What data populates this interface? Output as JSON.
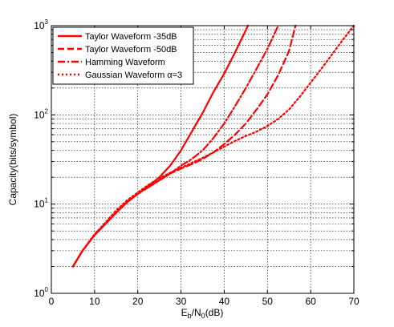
{
  "chart_data": {
    "type": "line",
    "title": "",
    "xlabel": {
      "base": "E",
      "sub1": "b",
      "mid": "/N",
      "sub2": "0",
      "tail": "(dB)"
    },
    "ylabel": "Capacity(bits/symbol)",
    "xlim": [
      0,
      70
    ],
    "ylim": [
      1,
      1000
    ],
    "yscale": "log",
    "grid": true,
    "legend_position": "top-left",
    "x_ticks": [
      {
        "value": 0,
        "label": "0"
      },
      {
        "value": 10,
        "label": "10"
      },
      {
        "value": 20,
        "label": "20"
      },
      {
        "value": 30,
        "label": "30"
      },
      {
        "value": 40,
        "label": "40"
      },
      {
        "value": 50,
        "label": "50"
      },
      {
        "value": 60,
        "label": "60"
      },
      {
        "value": 70,
        "label": "70"
      }
    ],
    "y_ticks": [
      {
        "value": 1,
        "base": "10",
        "exp": "0"
      },
      {
        "value": 10,
        "base": "10",
        "exp": "1"
      },
      {
        "value": 100,
        "base": "10",
        "exp": "2"
      },
      {
        "value": 1000,
        "base": "10",
        "exp": "3"
      }
    ],
    "line_color": "#ff0000",
    "series": [
      {
        "name": "Taylor Waveform -35dB",
        "style": "solid",
        "x": [
          5.0,
          7.2,
          10.0,
          12.5,
          15.0,
          17.5,
          20.0,
          22.5,
          25.0,
          27.5,
          30.0,
          32.5,
          35.0,
          37.5,
          40.0,
          42.5,
          45.5
        ],
        "y": [
          2.0,
          3.0,
          4.5,
          6.0,
          8.0,
          10.5,
          13.0,
          16.0,
          20.0,
          27.0,
          40.0,
          65.0,
          105.0,
          180.0,
          290.0,
          500.0,
          1000.0
        ]
      },
      {
        "name": "Taylor Waveform -50dB",
        "style": "dashed",
        "x": [
          5.0,
          7.2,
          10.0,
          12.5,
          15.0,
          17.5,
          20.0,
          22.5,
          25.0,
          27.5,
          30.0,
          32.5,
          35.0,
          37.5,
          40.0,
          42.5,
          45.0,
          47.5,
          50.0,
          52.5,
          55.0,
          56.5
        ],
        "y": [
          2.0,
          3.0,
          4.5,
          6.0,
          8.0,
          10.5,
          13.0,
          15.5,
          18.5,
          22.0,
          25.0,
          28.0,
          32.0,
          38.0,
          47.0,
          60.0,
          80.0,
          115.0,
          170.0,
          280.0,
          520.0,
          1000.0
        ]
      },
      {
        "name": "Hamming Waveform",
        "style": "dashdot",
        "x": [
          5.0,
          7.2,
          10.0,
          12.5,
          15.0,
          17.5,
          20.0,
          22.5,
          25.0,
          27.5,
          30.0,
          32.5,
          35.0,
          37.5,
          40.0,
          42.5,
          45.0,
          47.5,
          50.0,
          52.5
        ],
        "y": [
          2.0,
          3.0,
          4.5,
          6.0,
          8.0,
          10.5,
          13.0,
          15.5,
          18.5,
          22.0,
          27.0,
          32.0,
          40.0,
          55.0,
          80.0,
          125.0,
          200.0,
          330.0,
          550.0,
          1000.0
        ]
      },
      {
        "name": "Gaussian Waveform",
        "name_suffix": "α=3",
        "style": "dotted",
        "x": [
          5.0,
          7.2,
          10.0,
          12.5,
          15.0,
          17.5,
          20.0,
          22.5,
          25.0,
          27.5,
          30.0,
          32.5,
          35.0,
          37.5,
          40.0,
          42.5,
          45.0,
          47.5,
          50.0,
          52.5,
          55.0,
          57.5,
          60.0,
          62.5,
          65.0,
          67.5,
          70.0
        ],
        "y": [
          2.0,
          3.0,
          4.6,
          6.2,
          8.5,
          11.0,
          13.5,
          16.5,
          19.5,
          22.5,
          25.5,
          29.0,
          33.0,
          38.0,
          44.0,
          51.0,
          58.0,
          65.0,
          75.0,
          90.0,
          115.0,
          160.0,
          230.0,
          330.0,
          480.0,
          700.0,
          1000.0
        ]
      }
    ]
  }
}
